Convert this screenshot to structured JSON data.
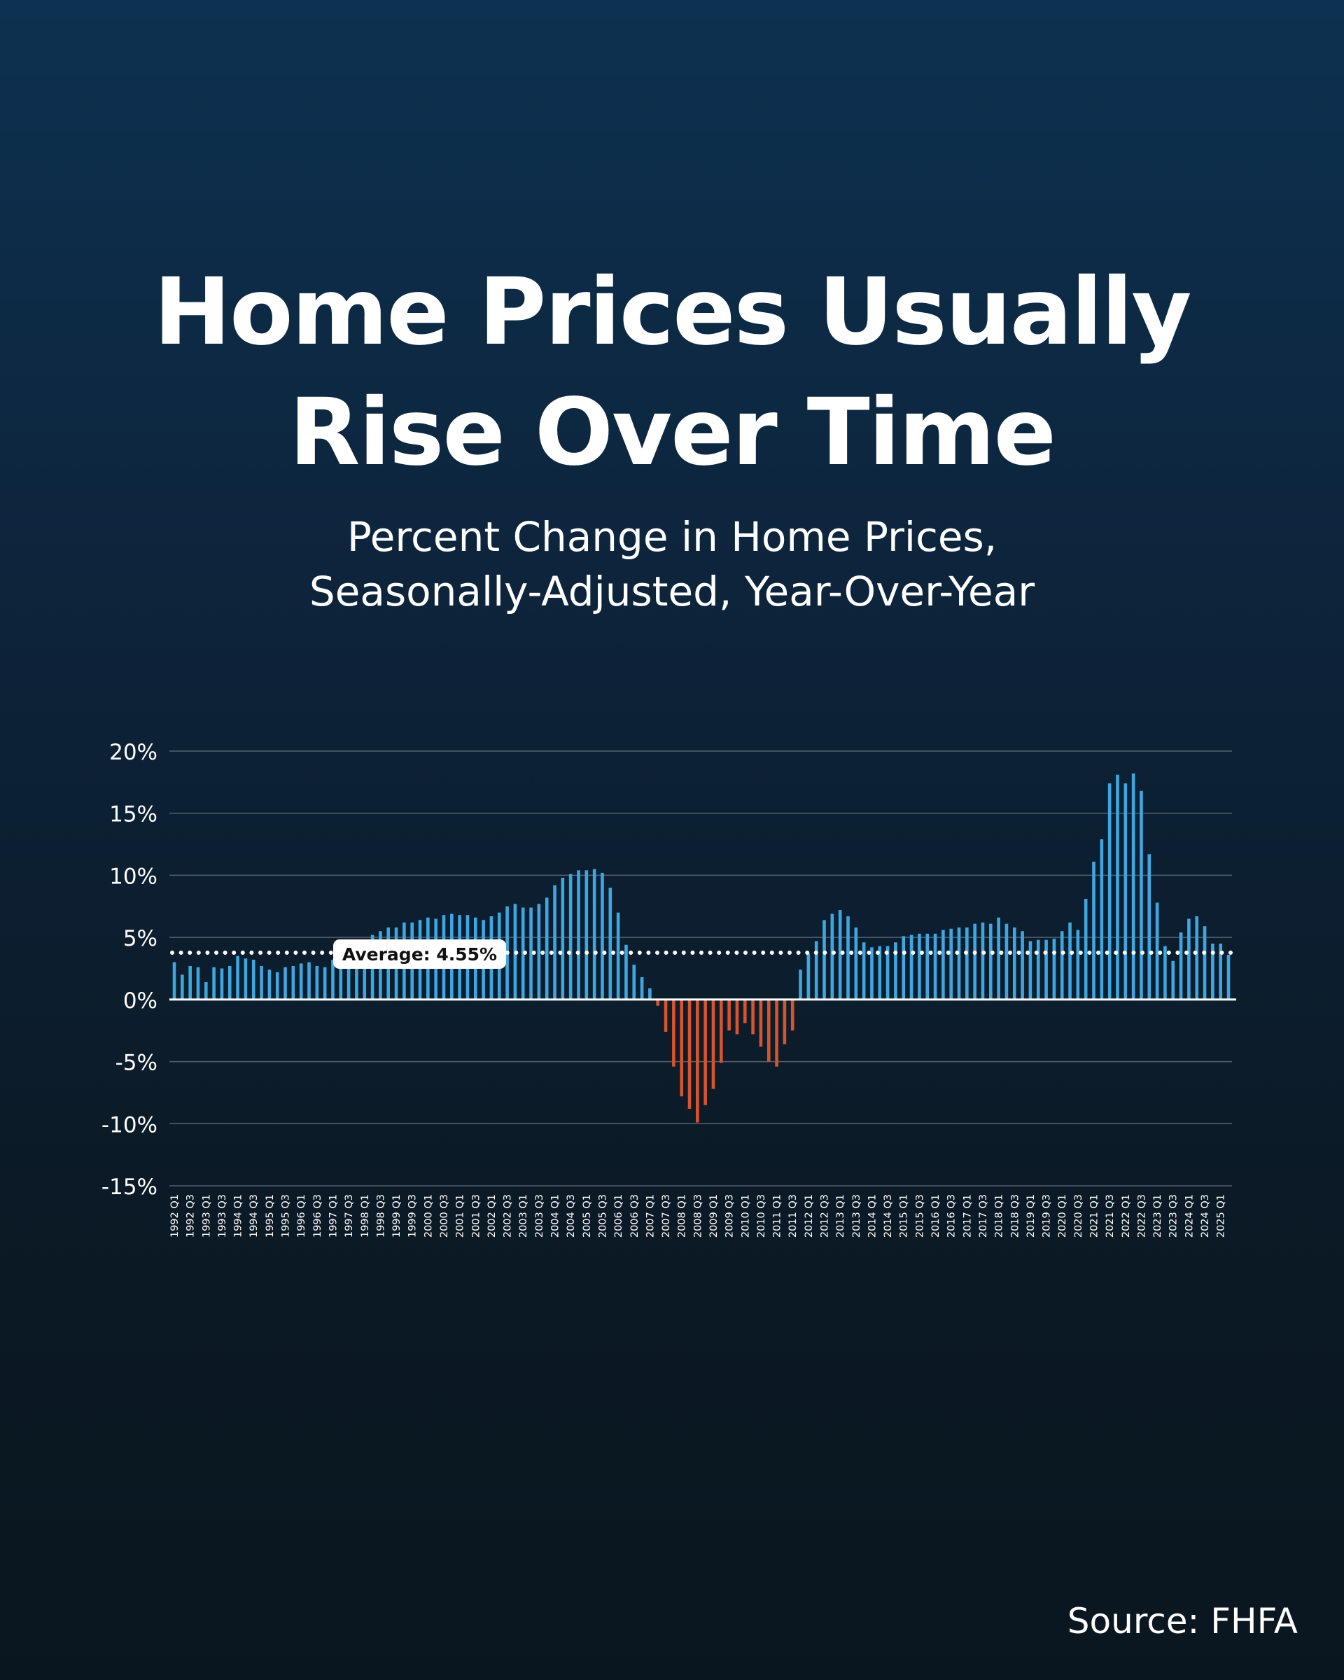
{
  "title_line1": "Home Prices Usually",
  "title_line2": "Rise Over Time",
  "subtitle_line1": "Percent Change in Home Prices,",
  "subtitle_line2": "Seasonally-Adjusted, Year-Over-Year",
  "source": "Source: FHFA",
  "colors": {
    "positive": "#3fa7e0",
    "negative": "#d9532b",
    "gridline": "#56616c",
    "text": "#ffffff"
  },
  "chart_data": {
    "type": "bar",
    "title": "Percent Change in Home Prices, Seasonally-Adjusted, Year-Over-Year",
    "ylim": [
      -15,
      20
    ],
    "yticks": [
      20,
      15,
      10,
      5,
      0,
      -5,
      -10,
      -15
    ],
    "ytick_labels": [
      "20%",
      "15%",
      "10%",
      "5%",
      "0%",
      "-5%",
      "-10%",
      "-15%"
    ],
    "grid": true,
    "xtick_labels": [
      "1992 Q1",
      "1992 Q3",
      "1993 Q1",
      "1993 Q3",
      "1994 Q1",
      "1994 Q3",
      "1995 Q1",
      "1995 Q3",
      "1996 Q1",
      "1996 Q3",
      "1997 Q1",
      "1997 Q3",
      "1998 Q1",
      "1998 Q3",
      "1999 Q1",
      "1999 Q3",
      "2000 Q1",
      "2000 Q3",
      "2001 Q1",
      "2001 Q3",
      "2002 Q1",
      "2002 Q3",
      "2003 Q1",
      "2003 Q3",
      "2004 Q1",
      "2004 Q3",
      "2005 Q1",
      "2005 Q3",
      "2006 Q1",
      "2006 Q3",
      "2007 Q1",
      "2007 Q3",
      "2008 Q1",
      "2008 Q3",
      "2009 Q1",
      "2009 Q3",
      "2010 Q1",
      "2010 Q3",
      "2011 Q1",
      "2011 Q3",
      "2012 Q1",
      "2012 Q3",
      "2013 Q1",
      "2013 Q3",
      "2014 Q1",
      "2014 Q3",
      "2015 Q1",
      "2015 Q3",
      "2016 Q1",
      "2016 Q3",
      "2017 Q1",
      "2017 Q3",
      "2018 Q1",
      "2018 Q3",
      "2019 Q1",
      "2019 Q3",
      "2020 Q1",
      "2020 Q3",
      "2021 Q1",
      "2021 Q3",
      "2022 Q1",
      "2022 Q3",
      "2023 Q1",
      "2023 Q3",
      "2024 Q1",
      "2024 Q3",
      "2025 Q1"
    ],
    "values": [
      3.0,
      2.0,
      2.7,
      2.6,
      1.4,
      2.6,
      2.5,
      2.7,
      3.5,
      3.3,
      3.2,
      2.7,
      2.4,
      2.2,
      2.6,
      2.7,
      2.9,
      3.0,
      2.7,
      2.6,
      3.2,
      3.5,
      4.0,
      4.3,
      4.7,
      5.2,
      5.5,
      5.8,
      5.8,
      6.2,
      6.2,
      6.4,
      6.6,
      6.5,
      6.8,
      6.9,
      6.8,
      6.8,
      6.6,
      6.4,
      6.7,
      7.0,
      7.5,
      7.7,
      7.4,
      7.4,
      7.7,
      8.2,
      9.2,
      9.8,
      10.1,
      10.4,
      10.4,
      10.5,
      10.2,
      9.0,
      7.0,
      4.4,
      2.8,
      1.8,
      0.9,
      -0.5,
      -2.6,
      -5.4,
      -7.8,
      -8.8,
      -9.9,
      -8.5,
      -7.2,
      -5.1,
      -2.5,
      -2.8,
      -1.9,
      -2.8,
      -3.8,
      -5.0,
      -5.4,
      -3.6,
      -2.5,
      2.4,
      3.7,
      4.7,
      6.4,
      6.9,
      7.2,
      6.7,
      5.8,
      4.6,
      4.2,
      4.3,
      4.3,
      4.6,
      5.1,
      5.2,
      5.3,
      5.3,
      5.3,
      5.6,
      5.7,
      5.8,
      5.8,
      6.1,
      6.2,
      6.1,
      6.6,
      6.1,
      5.8,
      5.5,
      4.7,
      4.8,
      4.8,
      4.9,
      5.5,
      6.2,
      5.6,
      8.1,
      11.1,
      12.9,
      17.4,
      18.1,
      17.4,
      18.2,
      16.8,
      11.7,
      7.8,
      4.3,
      3.1,
      5.4,
      6.5,
      6.7,
      5.9,
      4.5,
      4.5,
      3.6
    ],
    "average": 4.55,
    "average_label": "Average: 4.55%"
  }
}
